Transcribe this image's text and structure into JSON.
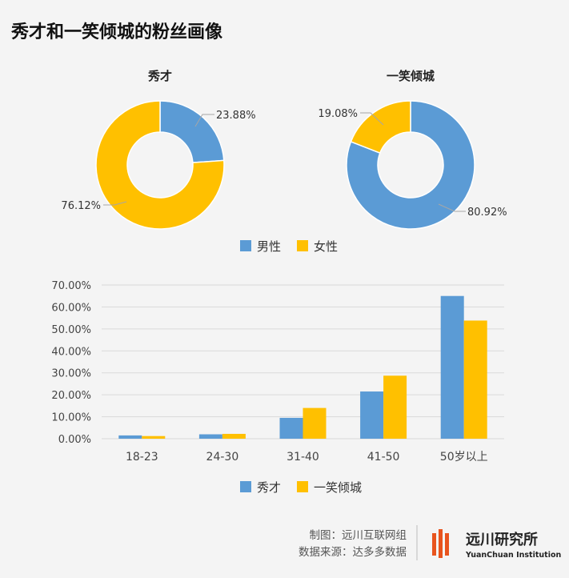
{
  "title": "秀才和一笑倾城的粉丝画像",
  "colors": {
    "male": "#5b9bd5",
    "female": "#ffc000",
    "xiucai": "#5b9bd5",
    "yixiao": "#ffc000",
    "grid": "#d9d9d9",
    "leader": "#a6a6a6"
  },
  "chart_data": [
    {
      "type": "pie",
      "title": "秀才",
      "slices": [
        {
          "name": "男性",
          "value": 23.88,
          "label": "23.88%"
        },
        {
          "name": "女性",
          "value": 76.12,
          "label": "76.12%"
        }
      ]
    },
    {
      "type": "pie",
      "title": "一笑倾城",
      "slices": [
        {
          "name": "男性",
          "value": 80.92,
          "label": "80.92%"
        },
        {
          "name": "女性",
          "value": 19.08,
          "label": "19.08%"
        }
      ]
    },
    {
      "type": "bar",
      "categories": [
        "18-23",
        "24-30",
        "31-40",
        "41-50",
        "50岁以上"
      ],
      "series": [
        {
          "name": "秀才",
          "values": [
            1.5,
            2.0,
            9.5,
            21.5,
            65.0
          ]
        },
        {
          "name": "一笑倾城",
          "values": [
            1.2,
            2.2,
            14.0,
            28.7,
            53.8
          ]
        }
      ],
      "ylim": [
        0,
        70
      ],
      "yticks": [
        "0.00%",
        "10.00%",
        "20.00%",
        "30.00%",
        "40.00%",
        "50.00%",
        "60.00%",
        "70.00%"
      ]
    }
  ],
  "pie_legend": [
    "男性",
    "女性"
  ],
  "bar_legend": [
    "秀才",
    "一笑倾城"
  ],
  "footer": {
    "line1": "制图：远川互联网组",
    "line2": "数据来源：达多多数据"
  },
  "brand": {
    "cn": "远川研究所",
    "en": "YuanChuan Institution"
  }
}
